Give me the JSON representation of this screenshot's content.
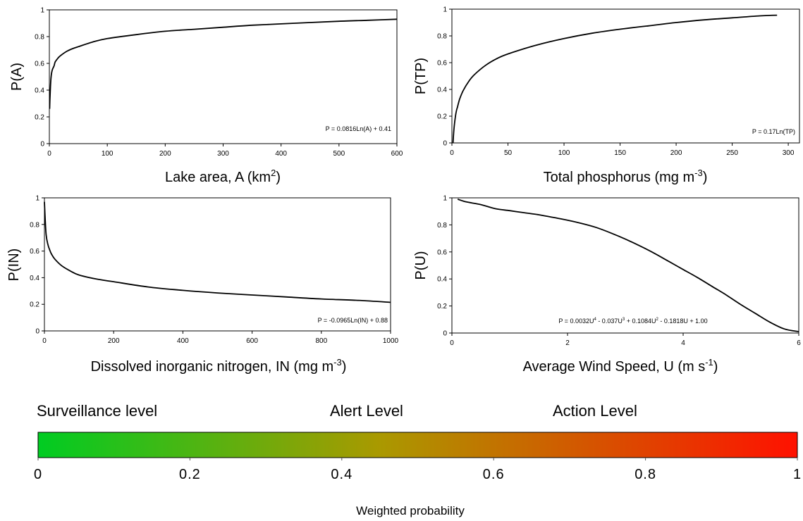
{
  "chart_data": [
    {
      "type": "line",
      "ylabel": "P(A)",
      "xlabel": "Lake area, A (km",
      "xlabel_sup": "2",
      "xlabel_tail": ")",
      "xlim": [
        0,
        600
      ],
      "ylim": [
        0,
        1
      ],
      "xticks": [
        "0",
        "100",
        "200",
        "300",
        "400",
        "500",
        "600"
      ],
      "yticks": [
        "0",
        "0.2",
        "0.4",
        "0.6",
        "0.8",
        "1"
      ],
      "x": [
        0.5,
        1,
        2,
        3,
        5,
        8,
        10,
        15,
        20,
        30,
        40,
        50,
        75,
        100,
        150,
        200,
        250,
        300,
        350,
        400,
        450,
        500,
        550,
        600
      ],
      "y": [
        0.26,
        0.33,
        0.43,
        0.5,
        0.55,
        0.58,
        0.61,
        0.64,
        0.66,
        0.69,
        0.71,
        0.725,
        0.76,
        0.785,
        0.815,
        0.84,
        0.855,
        0.87,
        0.885,
        0.895,
        0.905,
        0.915,
        0.922,
        0.93
      ],
      "annotation": "P = 0.0816Ln(A) + 0.41"
    },
    {
      "type": "line",
      "ylabel": "P(TP)",
      "xlabel": "Total phosphorus (mg m",
      "xlabel_sup": "-3",
      "xlabel_tail": ")",
      "xlim": [
        0,
        310
      ],
      "ylim": [
        0,
        1
      ],
      "xticks": [
        "0",
        "50",
        "100",
        "150",
        "200",
        "250",
        "300"
      ],
      "yticks": [
        "0",
        "0.2",
        "0.4",
        "0.6",
        "0.8",
        "1"
      ],
      "x": [
        1,
        1.5,
        2,
        3,
        4,
        5,
        7,
        10,
        15,
        20,
        30,
        40,
        50,
        75,
        100,
        125,
        150,
        175,
        200,
        225,
        250,
        275,
        290
      ],
      "y": [
        0.0,
        0.07,
        0.12,
        0.19,
        0.24,
        0.27,
        0.33,
        0.39,
        0.46,
        0.51,
        0.58,
        0.63,
        0.665,
        0.73,
        0.78,
        0.82,
        0.85,
        0.875,
        0.9,
        0.92,
        0.935,
        0.95,
        0.955
      ],
      "annotation": "P = 0.17Ln(TP)"
    },
    {
      "type": "line",
      "ylabel": "P(IN)",
      "xlabel": "Dissolved inorganic nitrogen, IN (mg m",
      "xlabel_sup": "-3",
      "xlabel_tail": ")",
      "xlim": [
        0,
        1000
      ],
      "ylim": [
        0,
        1
      ],
      "xticks": [
        "0",
        "200",
        "400",
        "600",
        "800",
        "1000"
      ],
      "yticks": [
        "0",
        "0.2",
        "0.4",
        "0.6",
        "0.8",
        "1"
      ],
      "x": [
        0,
        2,
        5,
        10,
        15,
        20,
        30,
        50,
        75,
        100,
        150,
        200,
        300,
        400,
        500,
        600,
        700,
        800,
        900,
        1000
      ],
      "y": [
        0.97,
        0.85,
        0.72,
        0.65,
        0.61,
        0.58,
        0.54,
        0.49,
        0.45,
        0.42,
        0.39,
        0.37,
        0.33,
        0.305,
        0.285,
        0.27,
        0.255,
        0.24,
        0.23,
        0.215
      ],
      "annotation": "P = -0.0965Ln(IN) + 0.88"
    },
    {
      "type": "line",
      "ylabel": "P(U)",
      "xlabel": "Average Wind Speed, U (m s",
      "xlabel_sup": "-1",
      "xlabel_tail": ")",
      "xlim": [
        0,
        6
      ],
      "ylim": [
        0,
        1
      ],
      "xticks": [
        "0",
        "2",
        "4",
        "6"
      ],
      "yticks": [
        "0",
        "0.2",
        "0.4",
        "0.6",
        "0.8",
        "1"
      ],
      "x": [
        0.1,
        0.25,
        0.5,
        0.75,
        1.0,
        1.25,
        1.5,
        1.75,
        2.0,
        2.25,
        2.5,
        2.75,
        3.0,
        3.25,
        3.5,
        3.75,
        4.0,
        4.25,
        4.5,
        4.75,
        5.0,
        5.25,
        5.5,
        5.75,
        6.0
      ],
      "y": [
        0.99,
        0.97,
        0.95,
        0.92,
        0.905,
        0.89,
        0.875,
        0.855,
        0.835,
        0.81,
        0.78,
        0.74,
        0.695,
        0.645,
        0.59,
        0.53,
        0.47,
        0.41,
        0.345,
        0.28,
        0.21,
        0.145,
        0.08,
        0.03,
        0.01
      ],
      "annotation": "P = 0.0032U",
      "annotation_parts": [
        "P = 0.0032U",
        "4",
        " - 0.037U",
        "3",
        " + 0.1084U",
        "2",
        " - 0.1818U + 1.00"
      ]
    }
  ],
  "scale_bar": {
    "levels": [
      "Surveillance level",
      "Alert Level",
      "Action Level"
    ],
    "ticks": [
      "0",
      "0.2",
      "0.4",
      "0.6",
      "0.8",
      "1"
    ],
    "title": "Weighted probability",
    "colors": {
      "start": "#00cc22",
      "mid": "#aa9900",
      "end": "#ff1100"
    }
  }
}
